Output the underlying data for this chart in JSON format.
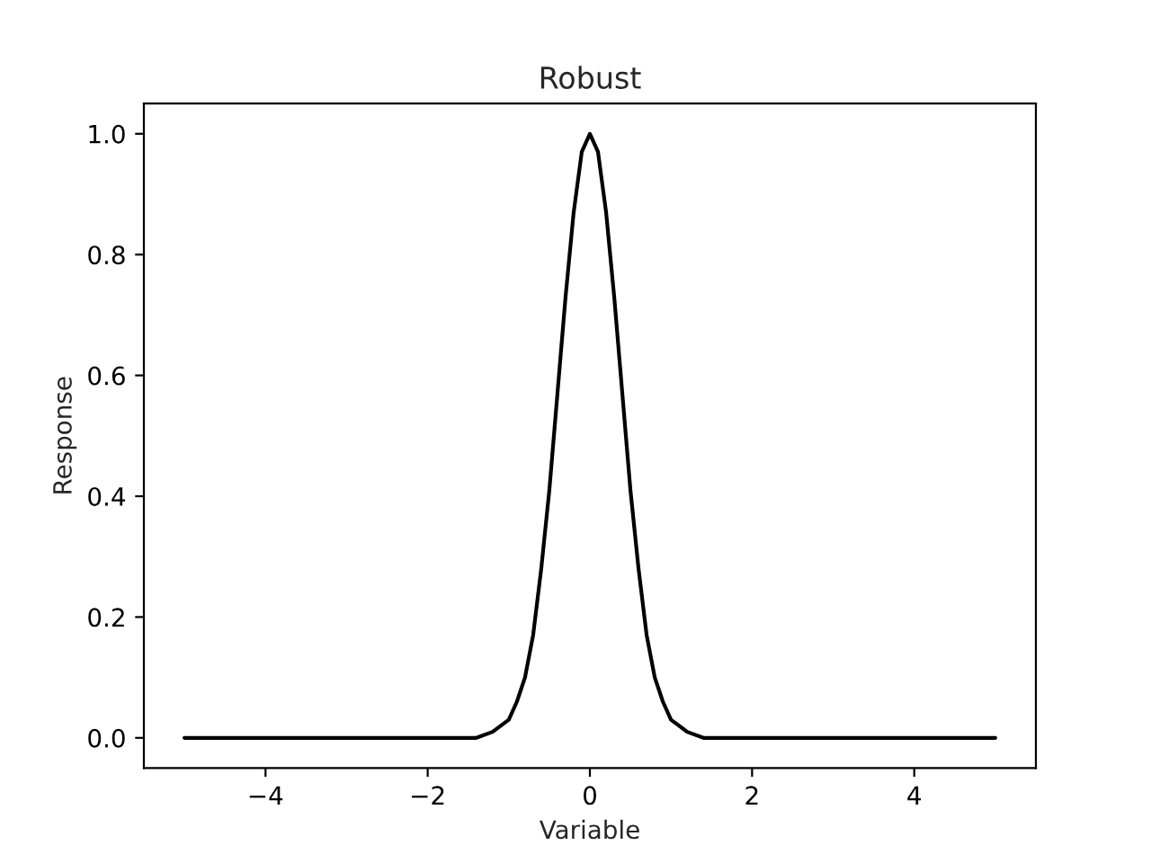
{
  "chart_data": {
    "type": "line",
    "title": "Robust",
    "xlabel": "Variable",
    "ylabel": "Response",
    "x": [
      -5,
      -3,
      -2,
      -1.6,
      -1.4,
      -1.2,
      -1.0,
      -0.9,
      -0.8,
      -0.7,
      -0.6,
      -0.5,
      -0.4,
      -0.3,
      -0.2,
      -0.1,
      0,
      0.1,
      0.2,
      0.3,
      0.4,
      0.5,
      0.6,
      0.7,
      0.8,
      0.9,
      1.0,
      1.2,
      1.4,
      1.6,
      2,
      3,
      5
    ],
    "series": [
      {
        "color": "#000000",
        "values": [
          0,
          0,
          0,
          0,
          0,
          0.01,
          0.03,
          0.06,
          0.1,
          0.17,
          0.28,
          0.41,
          0.57,
          0.73,
          0.87,
          0.97,
          1.0,
          0.97,
          0.87,
          0.73,
          0.57,
          0.41,
          0.28,
          0.17,
          0.1,
          0.06,
          0.03,
          0.01,
          0,
          0,
          0,
          0,
          0
        ]
      }
    ],
    "xlim": [
      -5.5,
      5.5
    ],
    "ylim": [
      -0.05,
      1.05
    ],
    "xticks": [
      {
        "value": -4,
        "label": "−4"
      },
      {
        "value": -2,
        "label": "−2"
      },
      0,
      2,
      4
    ],
    "yticks": [
      {
        "value": 0,
        "label": "0.0"
      },
      {
        "value": 0.2,
        "label": "0.2"
      },
      {
        "value": 0.4,
        "label": "0.4"
      },
      {
        "value": 0.6,
        "label": "0.6"
      },
      {
        "value": 0.8,
        "label": "0.8"
      },
      {
        "value": 1.0,
        "label": "1.0"
      }
    ],
    "grid": false,
    "line_style": "solid"
  }
}
